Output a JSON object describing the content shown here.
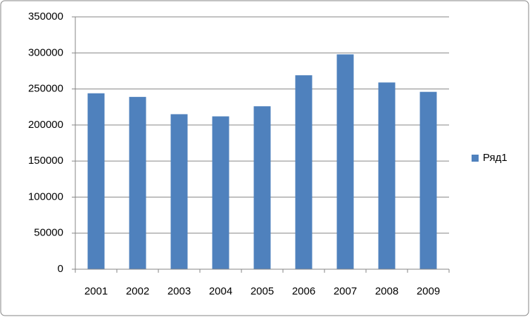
{
  "chart_data": {
    "type": "bar",
    "categories": [
      "2001",
      "2002",
      "2003",
      "2004",
      "2005",
      "2006",
      "2007",
      "2008",
      "2009"
    ],
    "series": [
      {
        "name": "Ряд1",
        "color": "#4f81bd",
        "values": [
          244000,
          239000,
          215000,
          212000,
          226000,
          269000,
          298000,
          259000,
          246000
        ]
      }
    ],
    "ylim": [
      0,
      350000
    ],
    "yticks": [
      0,
      50000,
      100000,
      150000,
      200000,
      250000,
      300000,
      350000
    ],
    "grid": true,
    "legend": "right"
  }
}
